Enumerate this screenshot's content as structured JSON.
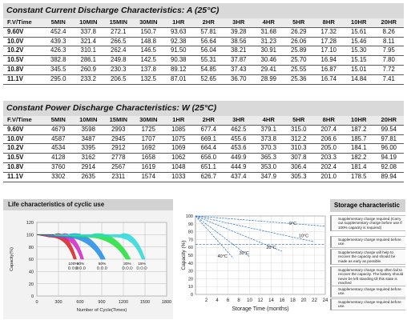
{
  "cc_table": {
    "title": "Constant Current Discharge Characteristics: A (25°C)",
    "headers": [
      "F.V/Time",
      "5MIN",
      "10MIN",
      "15MIN",
      "30MIN",
      "1HR",
      "2HR",
      "3HR",
      "4HR",
      "5HR",
      "8HR",
      "10HR",
      "20HR"
    ],
    "rows": [
      [
        "9.60V",
        "452.4",
        "337.8",
        "272.1",
        "150.7",
        "93.63",
        "57.81",
        "39.28",
        "31.68",
        "26.29",
        "17.32",
        "15.61",
        "8.26"
      ],
      [
        "10.0V",
        "439.3",
        "321.4",
        "266.5",
        "148.8",
        "92.38",
        "56.64",
        "38.56",
        "31.23",
        "26.06",
        "17.28",
        "15.46",
        "8.11"
      ],
      [
        "10.2V",
        "426.3",
        "310.1",
        "262.4",
        "146.5",
        "91.50",
        "56.04",
        "38.21",
        "30.91",
        "25.89",
        "17.10",
        "15.30",
        "7.95"
      ],
      [
        "10.5V",
        "382.8",
        "286.1",
        "249.8",
        "142.5",
        "90.38",
        "55.31",
        "37.87",
        "30.46",
        "25.70",
        "16.94",
        "15.15",
        "7.80"
      ],
      [
        "10.8V",
        "345.5",
        "260.9",
        "230.3",
        "137.8",
        "89.12",
        "54.85",
        "37.43",
        "29.41",
        "25.55",
        "16.87",
        "15.01",
        "7.72"
      ],
      [
        "11.1V",
        "295.0",
        "233.2",
        "206.5",
        "132.5",
        "87.01",
        "52.65",
        "36.70",
        "28.99",
        "25.36",
        "16.74",
        "14.84",
        "7.41"
      ]
    ]
  },
  "cp_table": {
    "title": "Constant Power Discharge Characteristics: W (25°C)",
    "headers": [
      "F.V/Time",
      "5MIN",
      "10MIN",
      "15MIN",
      "30MIN",
      "1HR",
      "2HR",
      "3HR",
      "4HR",
      "5HR",
      "8HR",
      "10HR",
      "20HR"
    ],
    "rows": [
      [
        "9.60V",
        "4679",
        "3598",
        "2993",
        "1725",
        "1085",
        "677.4",
        "462.5",
        "379.1",
        "315.0",
        "207.4",
        "187.2",
        "99.54"
      ],
      [
        "10.0V",
        "4587",
        "3487",
        "2945",
        "1707",
        "1075",
        "669.1",
        "455.6",
        "373.8",
        "312.2",
        "206.6",
        "185.7",
        "97.81"
      ],
      [
        "10.2V",
        "4534",
        "3395",
        "2912",
        "1692",
        "1069",
        "664.4",
        "453.6",
        "370.3",
        "310.3",
        "205.0",
        "184.1",
        "96.00"
      ],
      [
        "10.5V",
        "4128",
        "3162",
        "2778",
        "1658",
        "1062",
        "656.0",
        "449.9",
        "365.3",
        "307.8",
        "203.3",
        "182.2",
        "94.19"
      ],
      [
        "10.8V",
        "3760",
        "2914",
        "2567",
        "1619",
        "1048",
        "651.1",
        "444.9",
        "353.0",
        "306.4",
        "202.4",
        "181.4",
        "92.08"
      ],
      [
        "11.1V",
        "3302",
        "2635",
        "2311",
        "1574",
        "1033",
        "626.7",
        "437.4",
        "347.9",
        "305.3",
        "201.0",
        "178.5",
        "89.94"
      ]
    ]
  },
  "life_panel": {
    "title": "Life characteristics of cyclic use",
    "chart_data": {
      "type": "area",
      "xlabel": "Number of Cycle(Times)",
      "ylabel": "Capacity(%)",
      "x_ticks": [
        "0",
        "300",
        "600",
        "900",
        "1200",
        "1500",
        "1800"
      ],
      "y_ticks": [
        "0",
        "20",
        "40",
        "60",
        "80",
        "100",
        "120"
      ],
      "xlim": [
        0,
        1800
      ],
      "ylim": [
        0,
        120
      ],
      "series": [
        {
          "name": "100% D.O.D",
          "color": "#d61f1f",
          "start": 240,
          "end": 550
        },
        {
          "name": "80% D.O.D",
          "color": "#d322c8",
          "start": 330,
          "end": 650
        },
        {
          "name": "50% D.O.D",
          "color": "#1d8ce8",
          "start": 430,
          "end": 950
        },
        {
          "name": "30% D.O.D",
          "color": "#1fe03a",
          "start": 750,
          "end": 1300
        },
        {
          "name": "15% D.O.D",
          "color": "#2ad8d8",
          "start": 1150,
          "end": 1500
        }
      ],
      "labels": [
        {
          "pct": "100%",
          "dod": "D.O.D"
        },
        {
          "pct": "80%",
          "dod": "D.O.D"
        },
        {
          "pct": "50%",
          "dod": "D.O.D"
        },
        {
          "pct": "30%",
          "dod": "D.O.D"
        },
        {
          "pct": "15%",
          "dod": "D.O.D"
        }
      ]
    }
  },
  "storage_chart": {
    "chart_data": {
      "type": "line",
      "xlabel": "Storage Time (months)",
      "ylabel": "Capacity (%)",
      "x_ticks": [
        "2",
        "4",
        "6",
        "8",
        "10",
        "12",
        "14",
        "16",
        "18",
        "20",
        "22",
        "24"
      ],
      "y_ticks": [
        "0",
        "10",
        "20",
        "30",
        "40",
        "50",
        "60",
        "70",
        "80",
        "90",
        "100"
      ],
      "xlim": [
        0,
        24
      ],
      "ylim": [
        0,
        100
      ],
      "series": [
        {
          "name": "0°C",
          "color": "#2a72c9",
          "points": [
            [
              0,
              100
            ],
            [
              24,
              87
            ]
          ],
          "label_at": [
            18,
            89
          ]
        },
        {
          "name": "10°C",
          "color": "#2a72c9",
          "points": [
            [
              0,
              100
            ],
            [
              22,
              67
            ]
          ],
          "label_at": [
            20,
            73
          ]
        },
        {
          "name": "20°C",
          "color": "#2a72c9",
          "points": [
            [
              0,
              100
            ],
            [
              16,
              55
            ]
          ],
          "label_at": [
            14,
            58
          ]
        },
        {
          "name": "30°C",
          "color": "#2a72c9",
          "points": [
            [
              0,
              100
            ],
            [
              10,
              48
            ]
          ],
          "label_at": [
            9,
            51
          ]
        },
        {
          "name": "40°C",
          "color": "#2a72c9",
          "points": [
            [
              0,
              100
            ],
            [
              7,
              46
            ]
          ],
          "label_at": [
            5,
            47
          ]
        }
      ],
      "threshold_y": 64
    }
  },
  "storage_panel": {
    "title": "Storage characteristic",
    "items": [
      "Supplementary charge required (Carry out supplementary charge before use if 100% capacity is required)",
      "Supplementary charge required before use.",
      "Supplementary charge will help to recover the capacity and should be made as early as possible.",
      "Supplementary charge may often fail to recover the capacity. The battery should never be left standing till this state is reached",
      "Supplementary charge required before use.",
      "Supplementary charge required before use."
    ]
  }
}
